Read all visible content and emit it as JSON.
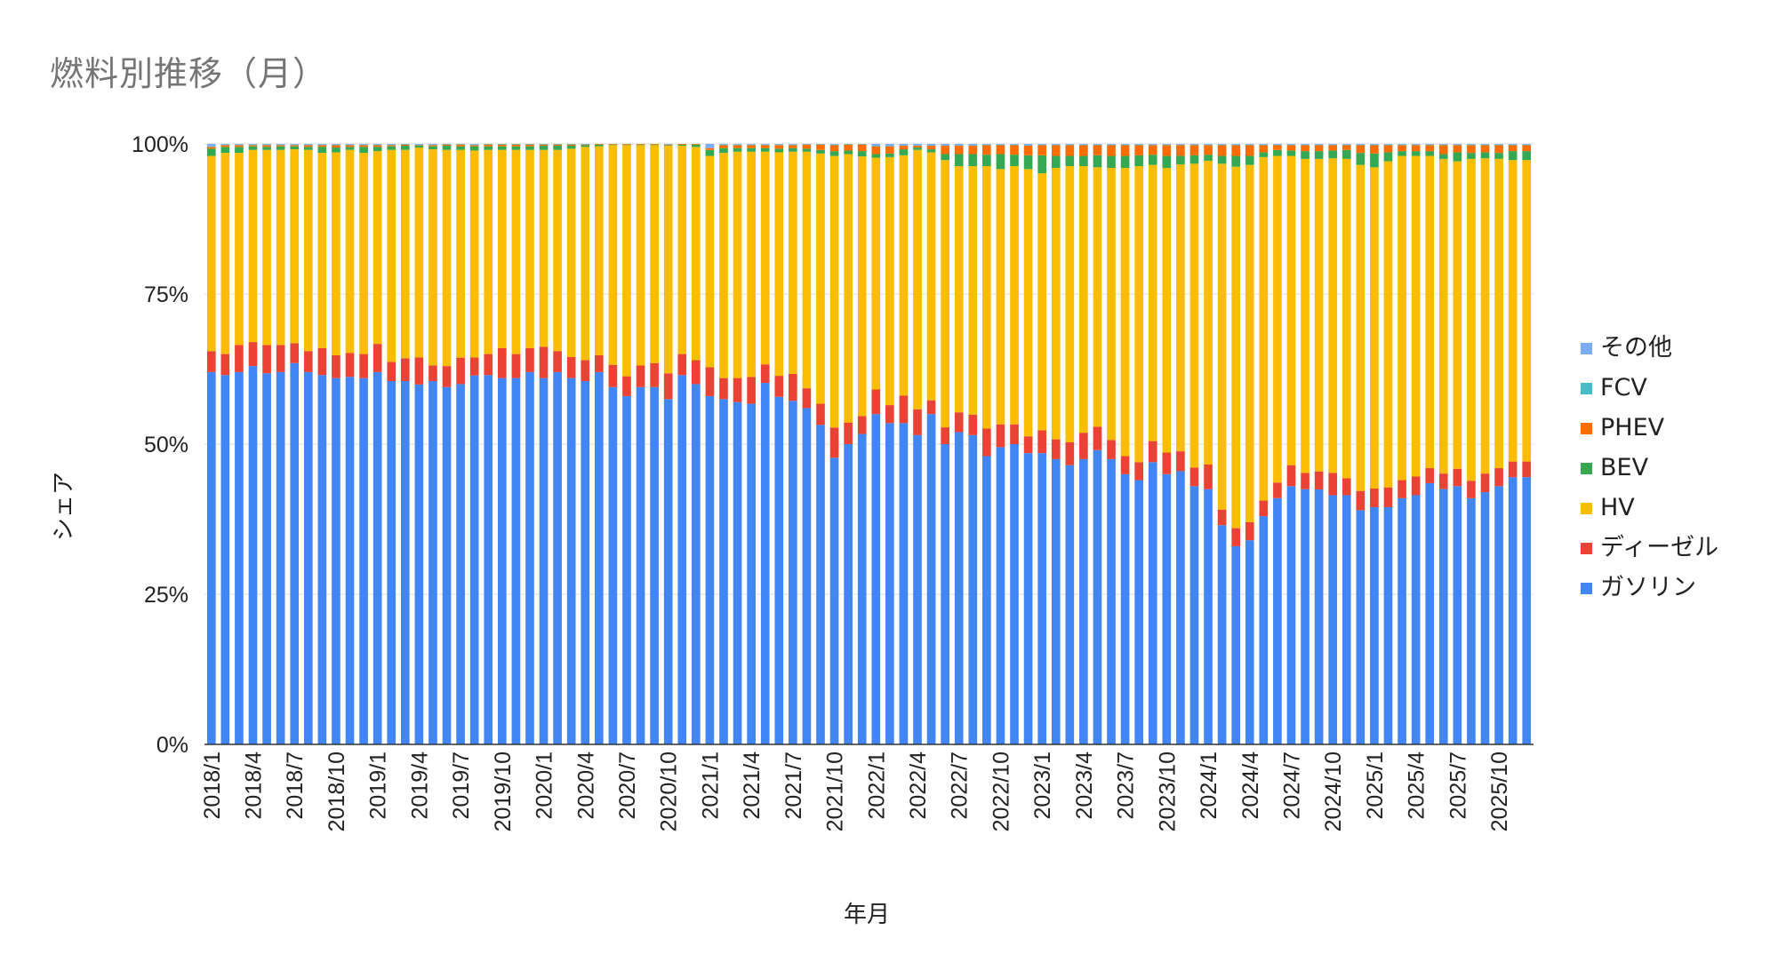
{
  "chart_data": {
    "type": "bar",
    "stacked": true,
    "title": "燃料別推移（月）",
    "xlabel": "年月",
    "ylabel": "シェア",
    "ylim": [
      0,
      100
    ],
    "y_ticks": [
      "0%",
      "25%",
      "50%",
      "75%",
      "100%"
    ],
    "grid": true,
    "legend_position": "right",
    "start": "2018/1",
    "x_tick_labels": [
      "2018/1",
      "2018/4",
      "2018/7",
      "2018/10",
      "2019/1",
      "2019/4",
      "2019/7",
      "2019/10",
      "2020/1",
      "2020/4",
      "2020/7",
      "2020/10",
      "2021/1",
      "2021/4",
      "2021/7",
      "2021/10",
      "2022/1",
      "2022/4",
      "2022/7",
      "2022/10",
      "2023/1",
      "2023/4",
      "2023/7",
      "2023/10",
      "2024/1",
      "2024/4",
      "2024/7",
      "2024/10",
      "2025/1",
      "2025/4",
      "2025/7",
      "2025/10"
    ],
    "series": [
      {
        "name": "ガソリン",
        "color": "#4285f4",
        "values": [
          62.0,
          61.5,
          62.0,
          63.0,
          61.8,
          62.0,
          63.5,
          62.0,
          61.5,
          61.0,
          61.2,
          61.0,
          62.0,
          60.5,
          60.5,
          60.0,
          60.5,
          59.5,
          60.0,
          61.5,
          61.5,
          61.0,
          61.0,
          62.0,
          61.0,
          62.0,
          61.0,
          60.5,
          62.0,
          59.5,
          58.0,
          59.5,
          59.5,
          57.5,
          61.5,
          60.0,
          58.0,
          57.5,
          57.0,
          57.0,
          60.5,
          58.0,
          57.5,
          56.0,
          53.0,
          47.5,
          50.0,
          52.0,
          55.0,
          53.5,
          53.5,
          51.5,
          55.0,
          50.0,
          52.0,
          51.5,
          48.0,
          49.5,
          50.0,
          48.5,
          48.5,
          47.5,
          46.5,
          47.5,
          49.0,
          47.5,
          45.0,
          44.0,
          47.0,
          45.0,
          45.5,
          43.0,
          42.5,
          36.5,
          33.0,
          34.0,
          38.0,
          41.0,
          43.0,
          42.5,
          42.5,
          41.5,
          41.5,
          39.0,
          39.5,
          39.5,
          41.0,
          41.5,
          43.5,
          42.5,
          43.0,
          41.0,
          42.0,
          43.0,
          44.5,
          44.5
        ]
      },
      {
        "name": "ディーゼル",
        "color": "#ea4335",
        "values": [
          3.5,
          3.5,
          4.5,
          4.0,
          4.7,
          4.5,
          3.3,
          3.5,
          4.5,
          3.8,
          4.0,
          4.0,
          4.7,
          3.2,
          3.8,
          4.5,
          2.6,
          3.5,
          4.4,
          3.0,
          3.5,
          5.0,
          4.0,
          4.0,
          5.2,
          3.5,
          3.5,
          3.5,
          2.8,
          3.7,
          3.3,
          3.6,
          4.0,
          4.3,
          3.5,
          4.0,
          4.8,
          3.5,
          4.0,
          4.5,
          3.1,
          3.5,
          4.5,
          3.3,
          3.5,
          5.0,
          3.6,
          3.0,
          4.1,
          3.0,
          4.6,
          4.3,
          2.3,
          2.8,
          3.3,
          3.4,
          4.6,
          3.8,
          3.3,
          2.8,
          3.8,
          3.3,
          3.8,
          4.4,
          3.9,
          3.2,
          3.0,
          3.0,
          3.5,
          3.6,
          3.3,
          3.1,
          4.1,
          2.6,
          3.0,
          3.0,
          2.6,
          2.6,
          3.5,
          2.7,
          3.0,
          3.7,
          2.8,
          3.2,
          3.1,
          3.3,
          3.0,
          3.1,
          2.5,
          2.6,
          2.9,
          2.9,
          3.1,
          3.0,
          2.6,
          2.6
        ]
      },
      {
        "name": "HV",
        "color": "#fbbc04",
        "values": [
          32.5,
          33.5,
          32.0,
          32.0,
          32.5,
          32.5,
          32.3,
          33.5,
          32.5,
          33.8,
          33.8,
          33.5,
          32.1,
          35.3,
          34.7,
          35.0,
          36.0,
          36.0,
          34.6,
          34.5,
          34.0,
          33.0,
          34.0,
          33.0,
          32.8,
          33.5,
          34.7,
          35.5,
          34.8,
          36.6,
          38.5,
          36.7,
          36.3,
          37.9,
          34.7,
          35.5,
          35.2,
          37.5,
          37.7,
          37.7,
          35.6,
          37.3,
          37.2,
          39.4,
          41.5,
          45.0,
          44.7,
          43.5,
          38.6,
          41.3,
          40.0,
          43.2,
          41.3,
          44.5,
          41.0,
          41.4,
          43.7,
          42.5,
          43.0,
          44.5,
          42.8,
          45.2,
          46.0,
          44.4,
          43.2,
          45.3,
          48.0,
          49.3,
          46.0,
          47.4,
          47.8,
          50.6,
          50.6,
          57.6,
          60.2,
          59.5,
          57.2,
          54.4,
          51.5,
          52.3,
          52.1,
          52.4,
          53.2,
          54.3,
          53.5,
          54.3,
          54.0,
          53.4,
          52.0,
          52.4,
          51.2,
          53.6,
          52.5,
          51.5,
          50.2,
          50.2
        ]
      },
      {
        "name": "BEV",
        "color": "#34a853",
        "values": [
          1.2,
          1.0,
          1.0,
          0.6,
          0.5,
          0.6,
          0.5,
          0.5,
          1.0,
          0.8,
          0.5,
          1.0,
          0.7,
          0.6,
          0.7,
          0.3,
          0.5,
          0.7,
          0.6,
          0.7,
          0.6,
          0.6,
          0.6,
          0.6,
          0.7,
          0.7,
          0.5,
          0.3,
          0.3,
          0.1,
          0.1,
          0.1,
          0.1,
          0.1,
          0.2,
          0.4,
          1.0,
          0.8,
          0.6,
          0.6,
          0.6,
          0.6,
          0.6,
          0.5,
          0.6,
          0.8,
          0.6,
          0.9,
          0.6,
          0.6,
          1.0,
          0.4,
          0.5,
          1.0,
          2.0,
          2.0,
          1.9,
          2.5,
          1.9,
          2.3,
          3.0,
          2.0,
          1.7,
          1.7,
          2.0,
          2.0,
          2.0,
          1.8,
          1.7,
          2.0,
          1.4,
          1.4,
          1.0,
          1.3,
          1.8,
          1.5,
          0.8,
          1.0,
          0.9,
          1.3,
          1.3,
          1.3,
          1.5,
          2.0,
          2.3,
          1.5,
          0.8,
          0.8,
          0.8,
          0.8,
          1.5,
          1.0,
          1.0,
          1.0,
          1.5,
          1.5
        ]
      },
      {
        "name": "PHEV",
        "color": "#ff6d01",
        "values": [
          0.3,
          0.3,
          0.3,
          0.2,
          0.3,
          0.2,
          0.2,
          0.3,
          0.3,
          0.4,
          0.3,
          0.3,
          0.3,
          0.2,
          0.2,
          0.1,
          0.2,
          0.2,
          0.3,
          0.2,
          0.3,
          0.3,
          0.3,
          0.3,
          0.2,
          0.2,
          0.2,
          0.1,
          0.1,
          0.1,
          0.1,
          0.1,
          0.1,
          0.1,
          0.1,
          0.1,
          0.3,
          0.5,
          0.5,
          0.5,
          0.5,
          0.6,
          0.5,
          0.7,
          0.9,
          1.0,
          1.0,
          1.1,
          1.3,
          1.2,
          0.6,
          0.3,
          0.6,
          1.4,
          1.4,
          1.4,
          1.6,
          1.5,
          1.6,
          1.6,
          1.7,
          1.8,
          1.8,
          1.8,
          1.7,
          1.8,
          1.8,
          1.7,
          1.6,
          1.8,
          1.8,
          1.7,
          1.6,
          1.8,
          1.8,
          1.8,
          1.2,
          0.8,
          0.9,
          1.0,
          1.0,
          0.9,
          0.8,
          1.3,
          1.4,
          1.2,
          1.0,
          1.0,
          1.0,
          1.5,
          1.2,
          1.3,
          1.2,
          1.3,
          1.0,
          1.0
        ]
      },
      {
        "name": "FCV",
        "color": "#46bdc6",
        "values": [
          0.1,
          0.1,
          0.1,
          0.1,
          0.1,
          0.1,
          0.1,
          0.1,
          0.1,
          0.1,
          0.1,
          0.1,
          0.1,
          0.1,
          0.1,
          0.1,
          0.1,
          0.1,
          0.1,
          0.1,
          0.1,
          0.1,
          0.1,
          0.1,
          0.1,
          0.1,
          0.1,
          0.1,
          0.0,
          0.0,
          0.0,
          0.0,
          0.0,
          0.0,
          0.0,
          0.0,
          0.0,
          0.1,
          0.1,
          0.1,
          0.1,
          0.1,
          0.1,
          0.1,
          0.1,
          0.1,
          0.1,
          0.1,
          0.1,
          0.1,
          0.1,
          0.1,
          0.1,
          0.1,
          0.1,
          0.1,
          0.1,
          0.1,
          0.1,
          0.1,
          0.1,
          0.1,
          0.1,
          0.1,
          0.1,
          0.1,
          0.1,
          0.1,
          0.1,
          0.1,
          0.1,
          0.1,
          0.1,
          0.1,
          0.1,
          0.1,
          0.1,
          0.1,
          0.1,
          0.1,
          0.1,
          0.1,
          0.1,
          0.1,
          0.1,
          0.1,
          0.1,
          0.1,
          0.1,
          0.1,
          0.1,
          0.1,
          0.1,
          0.1,
          0.1,
          0.1
        ]
      },
      {
        "name": "その他",
        "color": "#7baaf7",
        "values": [
          0.4,
          0.1,
          0.1,
          0.1,
          0.1,
          0.1,
          0.1,
          0.1,
          0.1,
          0.1,
          0.1,
          0.1,
          0.1,
          0.1,
          0.0,
          0.1,
          0.1,
          0.0,
          0.0,
          0.1,
          0.0,
          0.0,
          0.0,
          0.0,
          0.0,
          0.0,
          0.0,
          0.0,
          0.0,
          0.0,
          0.0,
          0.0,
          0.0,
          0.1,
          0.0,
          0.0,
          0.7,
          0.1,
          0.1,
          0.1,
          0.1,
          0.1,
          0.1,
          0.0,
          0.0,
          0.1,
          0.0,
          0.0,
          0.3,
          0.3,
          0.2,
          0.2,
          0.2,
          0.2,
          0.2,
          0.2,
          0.1,
          0.1,
          0.1,
          0.2,
          0.1,
          0.1,
          0.1,
          0.1,
          0.1,
          0.1,
          0.1,
          0.1,
          0.1,
          0.1,
          0.1,
          0.1,
          0.1,
          0.1,
          0.1,
          0.1,
          0.1,
          0.1,
          0.1,
          0.1,
          0.1,
          0.1,
          0.1,
          0.1,
          0.1,
          0.1,
          0.1,
          0.1,
          0.1,
          0.1,
          0.1,
          0.1,
          0.1,
          0.1,
          0.1,
          0.1
        ]
      }
    ]
  }
}
